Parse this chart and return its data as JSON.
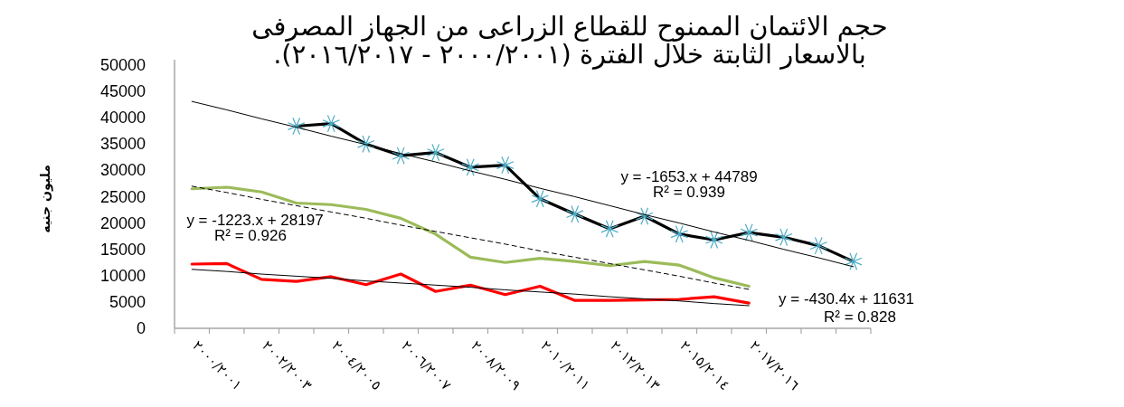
{
  "chart_data": {
    "type": "line",
    "title": "حجم الائتمان الممنوح للقطاع الزراعى من الجهاز المصرفى بالاسعار الثابتة خلال الفترة (٢٠٠٠/٢٠٠١ - ٢٠١٦/٢٠١٧).",
    "ylabel": "مليون جنيه",
    "categories": [
      "٢٠٠٠/٢٠٠١",
      null,
      "٢٠٠٢/٢٠٠٣",
      null,
      "٢٠٠٤/٢٠٠٥",
      null,
      "٢٠٠٦/٢٠٠٧",
      null,
      "٢٠٠٨/٢٠٠٩",
      null,
      "٢٠١٠/٢٠١١",
      null,
      "٢٠١٢/٢٠١٣",
      null,
      "٢٠١٥/٢٠١٤",
      null,
      "٢٠١٧/٢٠١٦",
      null,
      null,
      null
    ],
    "ylim": [
      0,
      50000
    ],
    "yticks": [
      0,
      5000,
      10000,
      15000,
      20000,
      25000,
      30000,
      35000,
      40000,
      45000,
      50000
    ],
    "annotations": [
      "y = -1223.x + 28197",
      "R² = 0.926",
      "y = -1653.x + 44789",
      "R² = 0.939",
      "y = -430.4x + 11631",
      "R² = 0.828"
    ],
    "series": [
      {
        "color": "#000000",
        "marker": "cross",
        "values": [
          null,
          null,
          null,
          38400,
          38900,
          35000,
          32800,
          33400,
          30600,
          31000,
          24600,
          21700,
          18900,
          21300,
          17900,
          16800,
          18200,
          17300,
          15700,
          12700
        ]
      },
      {
        "color": "#9bbb59",
        "values": [
          26500,
          26800,
          25900,
          23800,
          23500,
          22600,
          20900,
          17900,
          13500,
          12500,
          13300,
          12700,
          11900,
          12700,
          12000,
          9600,
          8000,
          null,
          null,
          null
        ]
      },
      {
        "color": "#ff0000",
        "values": [
          12200,
          12300,
          9300,
          8900,
          9800,
          8300,
          10300,
          7000,
          8200,
          6400,
          8000,
          5300,
          5300,
          5400,
          5500,
          6000,
          4800,
          null,
          null,
          null
        ]
      },
      {
        "type": "line",
        "color": "#000000",
        "values": [
          43100,
          41500,
          39800,
          38200,
          36500,
          34900,
          33200,
          31600,
          29900,
          28300,
          26600,
          25000,
          23300,
          21600,
          20000,
          18300,
          16700,
          15000,
          13400,
          11700
        ]
      },
      {
        "type": "line",
        "color": "#000000",
        "line_style": "dashed",
        "values": [
          27000,
          25800,
          24500,
          23300,
          22100,
          20900,
          19600,
          18400,
          17200,
          16000,
          14700,
          13500,
          12300,
          11100,
          9900,
          8600,
          7400,
          null,
          null,
          null
        ]
      },
      {
        "type": "line",
        "color": "#000000",
        "values": [
          11200,
          10800,
          10300,
          9900,
          9500,
          9000,
          8600,
          8200,
          7800,
          7300,
          6900,
          6500,
          6000,
          5600,
          5200,
          4700,
          4300,
          null,
          null,
          null
        ]
      }
    ]
  }
}
